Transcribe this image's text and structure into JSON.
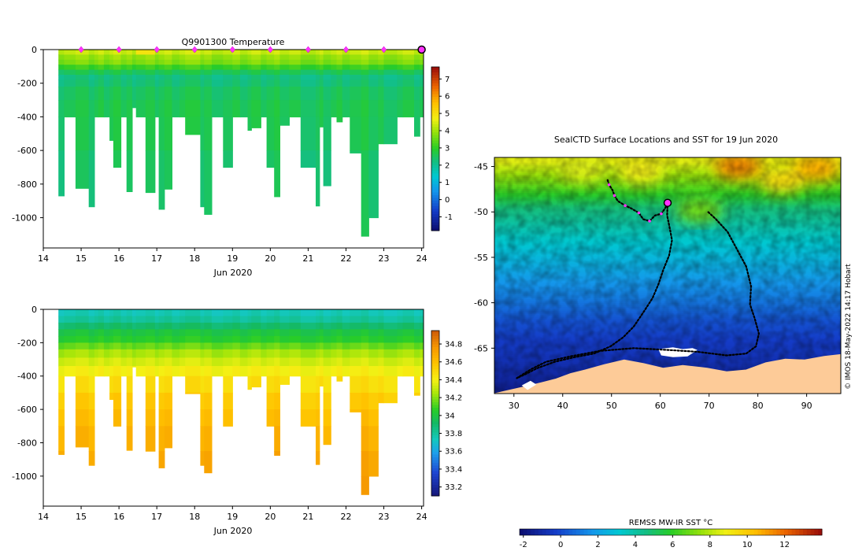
{
  "chart_data": [
    {
      "type": "heatmap",
      "panel": "temperature-profile",
      "title": "Q9901300  Temperature",
      "xlabel": "Jun 2020",
      "ylabel": "",
      "x_ticks": [
        "14",
        "15",
        "16",
        "17",
        "18",
        "19",
        "20",
        "21",
        "22",
        "23",
        "24"
      ],
      "xlim": [
        14,
        24.05
      ],
      "y_ticks": [
        "0",
        "-200",
        "-400",
        "-600",
        "-800",
        "-1000"
      ],
      "ylim": [
        -1180,
        0
      ],
      "colorbar_ticks": [
        "7",
        "6",
        "5",
        "4",
        "3",
        "2",
        "1",
        "0",
        "-1"
      ],
      "colorbar_range": [
        -1.8,
        7.7
      ],
      "surface_markers_day": [
        15,
        16,
        17,
        18,
        19,
        20,
        21,
        22,
        23
      ],
      "highlight_day": 24,
      "profile_start_day": [
        14.4,
        14.55,
        14.85,
        15.2,
        15.35,
        15.45,
        15.6,
        15.75,
        15.85,
        16.05,
        16.2,
        16.35,
        16.45,
        16.7,
        16.95,
        17.05,
        17.2,
        17.4,
        17.6,
        17.75,
        18.15,
        18.25,
        18.45,
        18.75,
        19.0,
        19.2,
        19.4,
        19.5,
        19.75,
        19.9,
        20.1,
        20.25,
        20.5,
        20.8,
        21.2,
        21.3,
        21.4,
        21.6,
        21.75,
        21.9,
        22.1,
        22.4,
        22.6,
        22.85,
        23.0,
        23.35,
        23.5,
        23.8,
        23.95
      ],
      "profile_end_day": [
        14.55,
        14.85,
        15.2,
        15.35,
        15.45,
        15.6,
        15.75,
        15.85,
        16.05,
        16.2,
        16.35,
        16.45,
        16.7,
        16.95,
        17.05,
        17.2,
        17.4,
        17.6,
        17.75,
        18.15,
        18.25,
        18.45,
        18.75,
        19.0,
        19.2,
        19.4,
        19.5,
        19.75,
        19.9,
        20.1,
        20.25,
        20.5,
        20.8,
        21.2,
        21.3,
        21.4,
        21.6,
        21.75,
        21.9,
        22.1,
        22.4,
        22.6,
        22.85,
        23.0,
        23.35,
        23.5,
        23.8,
        23.95,
        24.05
      ],
      "profile_max_depth_m": [
        -870,
        -400,
        -825,
        -935,
        -400,
        -400,
        -400,
        -540,
        -700,
        -400,
        -845,
        -345,
        -400,
        -850,
        -400,
        -950,
        -830,
        -400,
        -400,
        -505,
        -935,
        -980,
        -400,
        -700,
        -400,
        -400,
        -480,
        -465,
        -400,
        -700,
        -875,
        -450,
        -400,
        -700,
        -930,
        -460,
        -810,
        -400,
        -430,
        -400,
        -615,
        -1110,
        -1000,
        -560,
        -560,
        -400,
        -400,
        -515,
        -400
      ],
      "layers_depth_m": [
        -30,
        -60,
        -90,
        -120,
        -150,
        -180,
        -220,
        -300,
        -400,
        -600,
        -1200
      ],
      "layers_value_degC": [
        4.3,
        3.9,
        3.7,
        3.1,
        2.55,
        2.2,
        2.3,
        2.5,
        2.6,
        2.55,
        2.4
      ]
    },
    {
      "type": "heatmap",
      "panel": "salinity-profile",
      "title": "",
      "xlabel": "Jun 2020",
      "ylabel": "",
      "x_ticks": [
        "14",
        "15",
        "16",
        "17",
        "18",
        "19",
        "20",
        "21",
        "22",
        "23",
        "24"
      ],
      "xlim": [
        14,
        24.05
      ],
      "y_ticks": [
        "0",
        "-200",
        "-400",
        "-600",
        "-800",
        "-1000"
      ],
      "ylim": [
        -1180,
        0
      ],
      "colorbar_ticks": [
        "34.8",
        "34.6",
        "34.4",
        "34.2",
        "34",
        "33.8",
        "33.6",
        "33.4",
        "33.2"
      ],
      "colorbar_range": [
        33.1,
        34.95
      ],
      "layers_depth_m": [
        -40,
        -80,
        -120,
        -160,
        -200,
        -240,
        -290,
        -340,
        -400,
        -500,
        -600,
        -700,
        -850,
        -1000,
        -1200
      ],
      "layers_value_psu": [
        33.75,
        33.8,
        33.9,
        34.0,
        34.05,
        34.15,
        34.25,
        34.33,
        34.4,
        34.47,
        34.55,
        34.6,
        34.65,
        34.7,
        34.72
      ]
    },
    {
      "type": "heatmap",
      "panel": "sst-map",
      "title": "SealCTD Surface Locations and SST for 19 Jun 2020",
      "x_ticks": [
        "30",
        "40",
        "50",
        "60",
        "70",
        "80",
        "90"
      ],
      "xlim": [
        26,
        97
      ],
      "y_ticks": [
        "-45",
        "-50",
        "-55",
        "-60",
        "-65"
      ],
      "ylim": [
        -70,
        -44
      ],
      "colorbar_label": "REMSS MW-IR SST °C",
      "colorbar_ticks": [
        "-2",
        "0",
        "2",
        "4",
        "6",
        "8",
        "10",
        "12"
      ],
      "colorbar_range": [
        -2.2,
        14
      ],
      "current_position": [
        61.5,
        -49.0
      ],
      "credit": "© IMOS 18-May-2022 14:17 Hobart",
      "sst_by_latitude": [
        {
          "lat": -44.5,
          "sst": 8.6
        },
        {
          "lat": -47,
          "sst": 6.8
        },
        {
          "lat": -49.5,
          "sst": 4.8
        },
        {
          "lat": -53,
          "sst": 3.3
        },
        {
          "lat": -56,
          "sst": 2.3
        },
        {
          "lat": -59,
          "sst": 1.3
        },
        {
          "lat": -62,
          "sst": 0.2
        },
        {
          "lat": -70,
          "sst": -1.5
        }
      ],
      "warm_patches": [
        {
          "lon": 76,
          "lat": -45,
          "sst": 11.5
        },
        {
          "lon": 92,
          "lat": -45.2,
          "sst": 10.8
        },
        {
          "lon": 85,
          "lat": -46.5,
          "sst": 9.6
        },
        {
          "lon": 56,
          "lat": -45.5,
          "sst": 9.0
        },
        {
          "lon": 44,
          "lat": -45.3,
          "sst": 8.5
        },
        {
          "lon": 68,
          "lat": -49.8,
          "sst": 7.0
        }
      ],
      "track": [
        [
          49.2,
          -46.5
        ],
        [
          49.5,
          -47.0
        ],
        [
          50.2,
          -47.6
        ],
        [
          50.6,
          -48.2
        ],
        [
          51.3,
          -48.8
        ],
        [
          52.8,
          -49.3
        ],
        [
          54.0,
          -49.6
        ],
        [
          55.6,
          -50.1
        ],
        [
          56.5,
          -50.8
        ],
        [
          57.8,
          -51.0
        ],
        [
          58.9,
          -50.4
        ],
        [
          60.2,
          -50.2
        ],
        [
          61.0,
          -49.6
        ],
        [
          61.5,
          -49.0
        ]
      ],
      "outbound_track": [
        [
          61.5,
          -49.0
        ],
        [
          61.4,
          -50.4
        ],
        [
          61.9,
          -51.7
        ],
        [
          62.4,
          -53.1
        ],
        [
          61.8,
          -54.8
        ],
        [
          60.6,
          -56.4
        ],
        [
          59.6,
          -58.0
        ],
        [
          58.4,
          -59.5
        ],
        [
          56.6,
          -61.0
        ],
        [
          54.6,
          -62.6
        ],
        [
          52.4,
          -63.8
        ],
        [
          49.8,
          -64.8
        ],
        [
          46.4,
          -65.6
        ],
        [
          42.4,
          -66.0
        ],
        [
          38.4,
          -66.5
        ],
        [
          34.8,
          -67.2
        ],
        [
          32.2,
          -67.9
        ],
        [
          30.6,
          -68.3
        ]
      ],
      "return_track": [
        [
          30.6,
          -68.3
        ],
        [
          33.6,
          -67.3
        ],
        [
          36.6,
          -66.5
        ],
        [
          41.6,
          -65.9
        ],
        [
          47.6,
          -65.3
        ],
        [
          54.6,
          -65.0
        ],
        [
          61.6,
          -65.2
        ],
        [
          67.6,
          -65.4
        ],
        [
          73.6,
          -65.8
        ],
        [
          77.6,
          -65.6
        ],
        [
          79.6,
          -64.8
        ],
        [
          80.2,
          -63.4
        ],
        [
          79.4,
          -61.8
        ],
        [
          78.4,
          -60.2
        ],
        [
          78.6,
          -58.2
        ],
        [
          77.6,
          -56.0
        ],
        [
          75.6,
          -54.0
        ],
        [
          73.8,
          -52.2
        ],
        [
          71.4,
          -50.8
        ],
        [
          69.8,
          -50.0
        ]
      ],
      "antarctic_coast": [
        [
          26,
          -70
        ],
        [
          32.6,
          -69.2
        ],
        [
          35.6,
          -68.8
        ],
        [
          38.6,
          -68.4
        ],
        [
          41.6,
          -67.8
        ],
        [
          44.6,
          -67.4
        ],
        [
          48.6,
          -66.8
        ],
        [
          52.6,
          -66.3
        ],
        [
          56.6,
          -66.7
        ],
        [
          60.6,
          -67.2
        ],
        [
          64.6,
          -66.9
        ],
        [
          69.6,
          -67.2
        ],
        [
          73.6,
          -67.6
        ],
        [
          77.6,
          -67.4
        ],
        [
          81.6,
          -66.6
        ],
        [
          85.6,
          -66.2
        ],
        [
          89.6,
          -66.3
        ],
        [
          93.6,
          -65.9
        ],
        [
          97,
          -65.7
        ],
        [
          97,
          -70
        ]
      ],
      "sea_ice_patches": [
        [
          [
            59.6,
            -65.1
          ],
          [
            62.6,
            -64.9
          ],
          [
            64.6,
            -65.1
          ],
          [
            66.6,
            -65.0
          ],
          [
            67.6,
            -65.2
          ],
          [
            65.6,
            -65.9
          ],
          [
            62.6,
            -66.0
          ],
          [
            60.2,
            -65.8
          ]
        ],
        [
          [
            31.6,
            -69.1
          ],
          [
            33.4,
            -68.6
          ],
          [
            34.6,
            -69.0
          ],
          [
            32.8,
            -69.6
          ]
        ]
      ]
    }
  ]
}
